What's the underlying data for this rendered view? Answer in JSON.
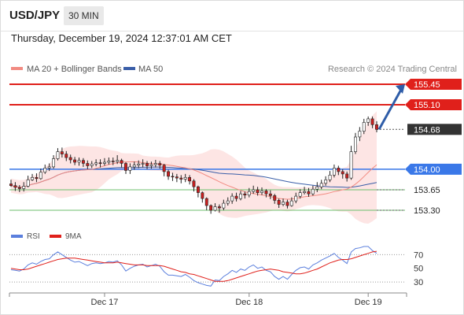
{
  "header": {
    "pair": "USD/JPY",
    "timeframe": "30 MIN"
  },
  "datetime": "Thursday, December 19, 2024 12:37:01 AM CET",
  "legend": {
    "ma20_bb": "MA 20 + Bollinger Bands",
    "ma50": "MA 50",
    "rsi": "RSI",
    "rsi_ma": "9MA"
  },
  "copyright": "Research © 2024 Trading Central",
  "colors": {
    "ma20": "#f28b82",
    "bb_fill": "#fde0df",
    "ma50": "#3a5ea8",
    "resistance": "#e0201b",
    "support": "#3a78e8",
    "support_minor": "#6cbf6c",
    "bull": "#ffffff",
    "bear": "#cc1f1f",
    "current_price_bg": "#333333",
    "arrow": "#2f5da8",
    "rsi": "#5b7fdd",
    "rsi_ma": "#e0201b"
  },
  "chart_data": [
    {
      "type": "candlestick",
      "title": "USD/JPY",
      "timeframe": "30 MIN",
      "ylim": [
        153.2,
        155.55
      ],
      "x_ticks": [
        "Dec 17",
        "Dec 18",
        "Dec 19"
      ],
      "levels": [
        {
          "label": "155.45",
          "value": 155.45,
          "kind": "resistance"
        },
        {
          "label": "155.10",
          "value": 155.1,
          "kind": "resistance"
        },
        {
          "label": "154.68",
          "value": 154.68,
          "kind": "current"
        },
        {
          "label": "154.00",
          "value": 154.0,
          "kind": "pivot"
        },
        {
          "label": "153.65",
          "value": 153.65,
          "kind": "support"
        },
        {
          "label": "153.30",
          "value": 153.3,
          "kind": "support"
        }
      ],
      "projection": {
        "from": 154.68,
        "to": 155.45,
        "direction": "up"
      },
      "candles": [
        [
          153.75,
          153.72,
          153.82,
          153.7
        ],
        [
          153.72,
          153.69,
          153.78,
          153.63
        ],
        [
          153.69,
          153.67,
          153.73,
          153.61
        ],
        [
          153.67,
          153.71,
          153.78,
          153.62
        ],
        [
          153.71,
          153.82,
          153.89,
          153.69
        ],
        [
          153.82,
          153.86,
          153.92,
          153.8
        ],
        [
          153.86,
          153.84,
          153.93,
          153.78
        ],
        [
          153.84,
          153.95,
          154.01,
          153.82
        ],
        [
          153.95,
          154.02,
          154.08,
          153.92
        ],
        [
          154.02,
          154.04,
          154.1,
          153.97
        ],
        [
          154.04,
          154.18,
          154.24,
          154.01
        ],
        [
          154.18,
          154.3,
          154.36,
          154.15
        ],
        [
          154.3,
          154.26,
          154.37,
          154.2
        ],
        [
          154.26,
          154.2,
          154.31,
          154.14
        ],
        [
          154.2,
          154.16,
          154.25,
          154.1
        ],
        [
          154.16,
          154.12,
          154.21,
          154.07
        ],
        [
          154.12,
          154.15,
          154.2,
          154.06
        ],
        [
          154.15,
          154.1,
          154.19,
          154.04
        ],
        [
          154.1,
          154.06,
          154.15,
          154.0
        ],
        [
          154.06,
          154.09,
          154.14,
          154.02
        ],
        [
          154.09,
          154.11,
          154.17,
          154.05
        ],
        [
          154.11,
          154.1,
          154.17,
          154.03
        ],
        [
          154.1,
          154.12,
          154.19,
          154.06
        ],
        [
          154.12,
          154.14,
          154.2,
          154.08
        ],
        [
          154.14,
          154.13,
          154.2,
          154.07
        ],
        [
          154.13,
          154.15,
          154.24,
          154.09
        ],
        [
          154.15,
          154.1,
          154.18,
          154.03
        ],
        [
          154.1,
          153.98,
          154.12,
          153.92
        ],
        [
          153.98,
          154.04,
          154.1,
          153.92
        ],
        [
          154.04,
          154.07,
          154.13,
          153.99
        ],
        [
          154.07,
          154.09,
          154.15,
          154.02
        ],
        [
          154.09,
          154.1,
          154.17,
          154.03
        ],
        [
          154.1,
          154.06,
          154.14,
          154.0
        ],
        [
          154.06,
          154.08,
          154.13,
          154.01
        ],
        [
          154.08,
          154.1,
          154.16,
          154.03
        ],
        [
          154.1,
          154.07,
          154.14,
          154.01
        ],
        [
          154.07,
          153.96,
          154.09,
          153.88
        ],
        [
          153.96,
          153.88,
          153.99,
          153.82
        ],
        [
          153.88,
          153.87,
          153.94,
          153.8
        ],
        [
          153.87,
          153.85,
          153.92,
          153.78
        ],
        [
          153.85,
          153.83,
          153.9,
          153.76
        ],
        [
          153.83,
          153.86,
          153.92,
          153.78
        ],
        [
          153.86,
          153.8,
          153.9,
          153.74
        ],
        [
          153.8,
          153.7,
          153.83,
          153.62
        ],
        [
          153.7,
          153.6,
          153.72,
          153.52
        ],
        [
          153.6,
          153.5,
          153.62,
          153.43
        ],
        [
          153.5,
          153.38,
          153.52,
          153.3
        ],
        [
          153.38,
          153.3,
          153.4,
          153.24
        ],
        [
          153.3,
          153.36,
          153.42,
          153.28
        ],
        [
          153.36,
          153.34,
          153.4,
          153.26
        ],
        [
          153.34,
          153.42,
          153.48,
          153.3
        ],
        [
          153.42,
          153.46,
          153.52,
          153.38
        ],
        [
          153.46,
          153.54,
          153.59,
          153.41
        ],
        [
          153.54,
          153.5,
          153.6,
          153.45
        ],
        [
          153.5,
          153.58,
          153.63,
          153.47
        ],
        [
          153.58,
          153.56,
          153.62,
          153.5
        ],
        [
          153.56,
          153.62,
          153.68,
          153.52
        ],
        [
          153.62,
          153.65,
          153.72,
          153.58
        ],
        [
          153.65,
          153.6,
          153.7,
          153.55
        ],
        [
          153.6,
          153.63,
          153.69,
          153.56
        ],
        [
          153.63,
          153.58,
          153.66,
          153.52
        ],
        [
          153.58,
          153.55,
          153.64,
          153.49
        ],
        [
          153.55,
          153.47,
          153.58,
          153.41
        ],
        [
          153.47,
          153.4,
          153.5,
          153.34
        ],
        [
          153.4,
          153.44,
          153.5,
          153.37
        ],
        [
          153.44,
          153.38,
          153.48,
          153.33
        ],
        [
          153.38,
          153.46,
          153.52,
          153.36
        ],
        [
          153.46,
          153.54,
          153.6,
          153.42
        ],
        [
          153.54,
          153.6,
          153.66,
          153.5
        ],
        [
          153.6,
          153.62,
          153.7,
          153.57
        ],
        [
          153.62,
          153.58,
          153.68,
          153.53
        ],
        [
          153.58,
          153.66,
          153.72,
          153.55
        ],
        [
          153.66,
          153.7,
          153.78,
          153.61
        ],
        [
          153.7,
          153.76,
          153.82,
          153.66
        ],
        [
          153.76,
          153.82,
          153.88,
          153.72
        ],
        [
          153.82,
          153.9,
          153.97,
          153.78
        ],
        [
          153.9,
          154.02,
          154.08,
          153.86
        ],
        [
          154.02,
          153.96,
          154.06,
          153.9
        ],
        [
          153.96,
          153.92,
          154.0,
          153.84
        ],
        [
          153.92,
          153.85,
          153.96,
          153.79
        ],
        [
          153.85,
          154.3,
          154.4,
          153.82
        ],
        [
          154.3,
          154.55,
          154.62,
          154.26
        ],
        [
          154.55,
          154.65,
          154.72,
          154.48
        ],
        [
          154.65,
          154.8,
          154.86,
          154.6
        ],
        [
          154.8,
          154.86,
          154.9,
          154.74
        ],
        [
          154.86,
          154.76,
          154.9,
          154.7
        ],
        [
          154.76,
          154.68,
          154.82,
          154.63
        ]
      ]
    },
    {
      "type": "line",
      "title": "RSI",
      "yticks": [
        70,
        50,
        30
      ],
      "ylim": [
        22,
        82
      ],
      "series": [
        {
          "name": "RSI",
          "values": [
            48,
            47,
            46,
            49,
            55,
            58,
            56,
            60,
            63,
            64,
            70,
            74,
            70,
            66,
            62,
            59,
            60,
            57,
            54,
            57,
            58,
            57,
            58,
            60,
            59,
            61,
            55,
            46,
            50,
            53,
            55,
            56,
            52,
            54,
            56,
            53,
            45,
            40,
            40,
            39,
            38,
            41,
            37,
            32,
            29,
            27,
            25,
            24,
            33,
            32,
            38,
            42,
            47,
            44,
            49,
            47,
            52,
            55,
            50,
            52,
            47,
            45,
            38,
            34,
            38,
            34,
            41,
            47,
            51,
            52,
            49,
            55,
            58,
            62,
            65,
            68,
            72,
            66,
            62,
            57,
            74,
            79,
            80,
            82,
            82,
            76,
            72
          ]
        },
        {
          "name": "9MA",
          "values": [
            50,
            49,
            48,
            48,
            49,
            51,
            53,
            55,
            57,
            59,
            61,
            63,
            64,
            65,
            65,
            65,
            64,
            63,
            62,
            61,
            60,
            59,
            58,
            58,
            58,
            59,
            58,
            57,
            56,
            55,
            55,
            55,
            54,
            54,
            54,
            54,
            53,
            51,
            49,
            47,
            45,
            44,
            42,
            41,
            39,
            37,
            35,
            33,
            31,
            31,
            31,
            32,
            34,
            36,
            38,
            40,
            42,
            44,
            46,
            47,
            48,
            49,
            48,
            47,
            45,
            44,
            43,
            42,
            42,
            43,
            45,
            47,
            49,
            52,
            55,
            58,
            60,
            62,
            63,
            63,
            64,
            66,
            68,
            70,
            72,
            74,
            75
          ]
        }
      ]
    }
  ]
}
